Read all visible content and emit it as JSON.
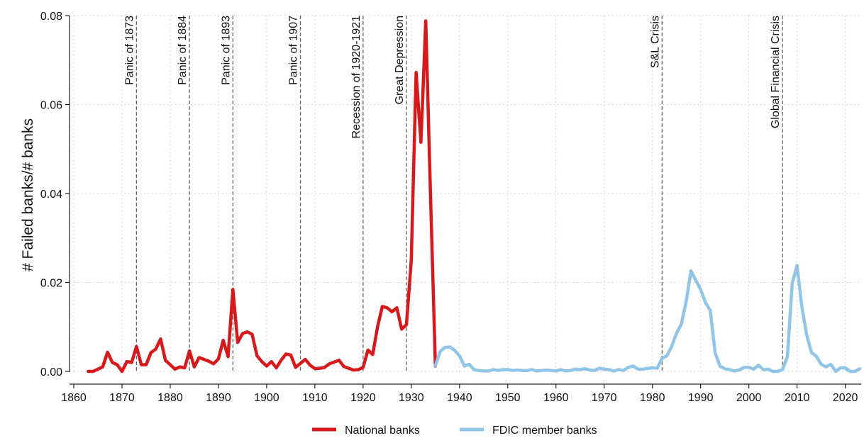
{
  "chart_data": {
    "type": "line",
    "title": "",
    "xlabel": "",
    "ylabel": "# Failed banks/# banks",
    "xlim": [
      1860,
      2023
    ],
    "ylim": [
      0,
      0.08
    ],
    "x_ticks": [
      1860,
      1870,
      1880,
      1890,
      1900,
      1910,
      1920,
      1930,
      1940,
      1950,
      1960,
      1970,
      1980,
      1990,
      2000,
      2010,
      2020
    ],
    "y_ticks": [
      {
        "value": 0,
        "label": "0.00"
      },
      {
        "value": 0.02,
        "label": "0.02"
      },
      {
        "value": 0.04,
        "label": "0.04"
      },
      {
        "value": 0.06,
        "label": "0.06"
      },
      {
        "value": 0.08,
        "label": "0.08"
      }
    ],
    "grid": true,
    "legend_position": "bottom",
    "events": [
      {
        "year": 1873,
        "label": "Panic of 1873"
      },
      {
        "year": 1884,
        "label": "Panic of 1884"
      },
      {
        "year": 1893,
        "label": "Panic of 1893"
      },
      {
        "year": 1907,
        "label": "Panic of 1907"
      },
      {
        "year": 1920,
        "label": "Recession of 1920-1921"
      },
      {
        "year": 1929,
        "label": "Great Depression"
      },
      {
        "year": 1982,
        "label": "S&L Crisis"
      },
      {
        "year": 2007,
        "label": "Global Financial Crisis"
      }
    ],
    "series": [
      {
        "name": "National banks",
        "color": "#d7191c",
        "points": [
          [
            1863,
            0
          ],
          [
            1864,
            0
          ],
          [
            1865,
            0.0005
          ],
          [
            1866,
            0.001
          ],
          [
            1867,
            0.0043
          ],
          [
            1868,
            0.002
          ],
          [
            1869,
            0.0015
          ],
          [
            1870,
            0
          ],
          [
            1871,
            0.0022
          ],
          [
            1872,
            0.002
          ],
          [
            1873,
            0.0056
          ],
          [
            1874,
            0.0015
          ],
          [
            1875,
            0.0015
          ],
          [
            1876,
            0.0042
          ],
          [
            1877,
            0.005
          ],
          [
            1878,
            0.0073
          ],
          [
            1879,
            0.0025
          ],
          [
            1880,
            0.0015
          ],
          [
            1881,
            0.0005
          ],
          [
            1882,
            0.001
          ],
          [
            1883,
            0.0008
          ],
          [
            1884,
            0.0046
          ],
          [
            1885,
            0.001
          ],
          [
            1886,
            0.0031
          ],
          [
            1887,
            0.0027
          ],
          [
            1888,
            0.0023
          ],
          [
            1889,
            0.0017
          ],
          [
            1890,
            0.0028
          ],
          [
            1891,
            0.007
          ],
          [
            1892,
            0.0033
          ],
          [
            1893,
            0.0184
          ],
          [
            1894,
            0.0065
          ],
          [
            1895,
            0.0085
          ],
          [
            1896,
            0.0089
          ],
          [
            1897,
            0.0083
          ],
          [
            1898,
            0.0035
          ],
          [
            1899,
            0.0022
          ],
          [
            1900,
            0.0012
          ],
          [
            1901,
            0.0022
          ],
          [
            1902,
            0.0008
          ],
          [
            1903,
            0.0025
          ],
          [
            1904,
            0.0039
          ],
          [
            1905,
            0.0037
          ],
          [
            1906,
            0.0009
          ],
          [
            1907,
            0.0018
          ],
          [
            1908,
            0.0027
          ],
          [
            1909,
            0.0014
          ],
          [
            1910,
            0.0006
          ],
          [
            1911,
            0.0007
          ],
          [
            1912,
            0.0009
          ],
          [
            1913,
            0.0017
          ],
          [
            1914,
            0.0021
          ],
          [
            1915,
            0.0025
          ],
          [
            1916,
            0.0011
          ],
          [
            1917,
            0.0007
          ],
          [
            1918,
            0.0003
          ],
          [
            1919,
            0.0004
          ],
          [
            1920,
            0.0009
          ],
          [
            1921,
            0.0048
          ],
          [
            1922,
            0.0038
          ],
          [
            1923,
            0.01
          ],
          [
            1924,
            0.0146
          ],
          [
            1925,
            0.0143
          ],
          [
            1926,
            0.0134
          ],
          [
            1927,
            0.0143
          ],
          [
            1928,
            0.0095
          ],
          [
            1929,
            0.0105
          ],
          [
            1930,
            0.025
          ],
          [
            1931,
            0.0672
          ],
          [
            1932,
            0.0515
          ],
          [
            1933,
            0.0788
          ],
          [
            1934,
            0.039
          ],
          [
            1935,
            0.0012
          ]
        ]
      },
      {
        "name": "FDIC member banks",
        "color": "#90c5e8",
        "points": [
          [
            1935,
            0.0013
          ],
          [
            1936,
            0.0045
          ],
          [
            1937,
            0.0054
          ],
          [
            1938,
            0.0055
          ],
          [
            1939,
            0.0047
          ],
          [
            1940,
            0.0035
          ],
          [
            1941,
            0.0012
          ],
          [
            1942,
            0.0016
          ],
          [
            1943,
            0.0004
          ],
          [
            1944,
            0.0002
          ],
          [
            1945,
            0.0001
          ],
          [
            1946,
            0.0001
          ],
          [
            1947,
            0.0004
          ],
          [
            1948,
            0.0002
          ],
          [
            1949,
            0.0004
          ],
          [
            1950,
            0.0004
          ],
          [
            1951,
            0.0002
          ],
          [
            1952,
            0.0003
          ],
          [
            1953,
            0.0002
          ],
          [
            1954,
            0.0002
          ],
          [
            1955,
            0.0004
          ],
          [
            1956,
            0.0001
          ],
          [
            1957,
            0.0002
          ],
          [
            1958,
            0.0003
          ],
          [
            1959,
            0.0002
          ],
          [
            1960,
            0.0001
          ],
          [
            1961,
            0.0004
          ],
          [
            1962,
            0.0001
          ],
          [
            1963,
            0.0002
          ],
          [
            1964,
            0.0005
          ],
          [
            1965,
            0.0004
          ],
          [
            1966,
            0.0006
          ],
          [
            1967,
            0.0003
          ],
          [
            1968,
            0.0002
          ],
          [
            1969,
            0.0007
          ],
          [
            1970,
            0.0005
          ],
          [
            1971,
            0.0004
          ],
          [
            1972,
            0.0001
          ],
          [
            1973,
            0.0004
          ],
          [
            1974,
            0.0002
          ],
          [
            1975,
            0.0009
          ],
          [
            1976,
            0.0012
          ],
          [
            1977,
            0.0005
          ],
          [
            1978,
            0.0005
          ],
          [
            1979,
            0.0007
          ],
          [
            1980,
            0.0008
          ],
          [
            1981,
            0.0007
          ],
          [
            1982,
            0.0029
          ],
          [
            1983,
            0.0035
          ],
          [
            1984,
            0.0056
          ],
          [
            1985,
            0.0086
          ],
          [
            1986,
            0.0106
          ],
          [
            1987,
            0.0157
          ],
          [
            1988,
            0.0226
          ],
          [
            1989,
            0.0205
          ],
          [
            1990,
            0.0184
          ],
          [
            1991,
            0.0155
          ],
          [
            1992,
            0.0137
          ],
          [
            1993,
            0.0042
          ],
          [
            1994,
            0.0012
          ],
          [
            1995,
            0.0006
          ],
          [
            1996,
            0.0004
          ],
          [
            1997,
            0.0001
          ],
          [
            1998,
            0.0003
          ],
          [
            1999,
            0.0009
          ],
          [
            2000,
            0.0009
          ],
          [
            2001,
            0.0005
          ],
          [
            2002,
            0.0014
          ],
          [
            2003,
            0.0004
          ],
          [
            2004,
            0.0005
          ],
          [
            2005,
            0
          ],
          [
            2006,
            0
          ],
          [
            2007,
            0.0004
          ],
          [
            2008,
            0.0033
          ],
          [
            2009,
            0.0198
          ],
          [
            2010,
            0.0238
          ],
          [
            2011,
            0.0145
          ],
          [
            2012,
            0.0082
          ],
          [
            2013,
            0.0042
          ],
          [
            2014,
            0.0034
          ],
          [
            2015,
            0.0016
          ],
          [
            2016,
            0.001
          ],
          [
            2017,
            0.0016
          ],
          [
            2018,
            0
          ],
          [
            2019,
            0.0008
          ],
          [
            2020,
            0.0008
          ],
          [
            2021,
            0
          ],
          [
            2022,
            0
          ],
          [
            2023,
            0.0006
          ]
        ]
      }
    ]
  }
}
